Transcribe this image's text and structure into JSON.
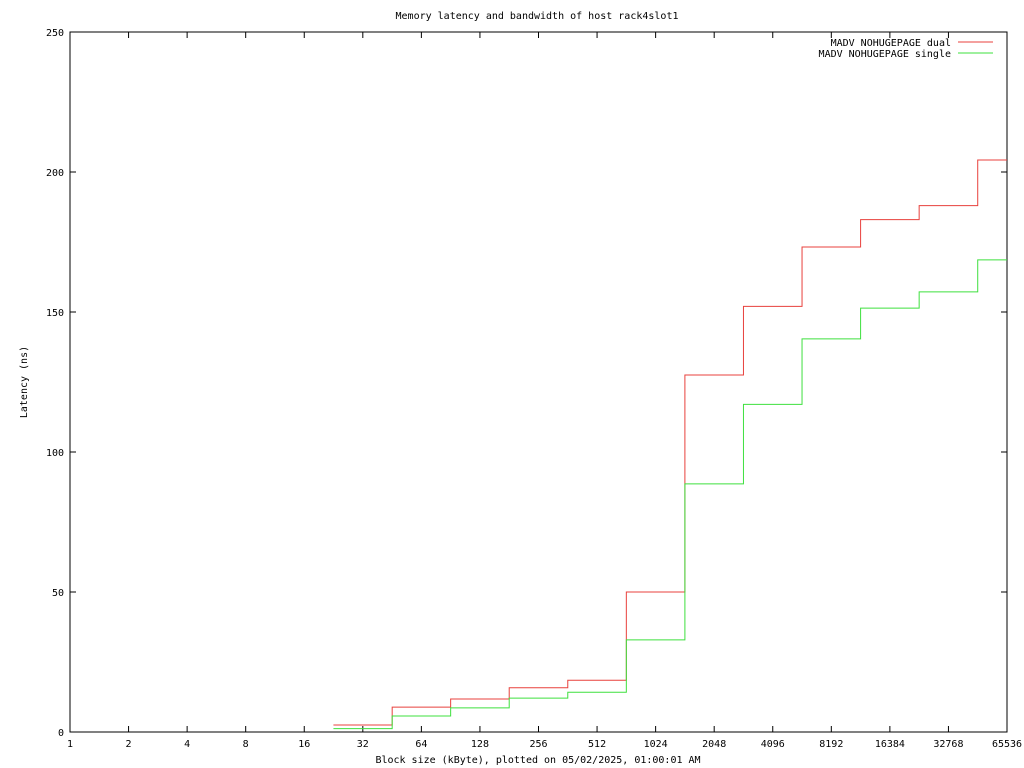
{
  "chart_data": {
    "type": "line",
    "step": true,
    "title": "Memory latency and bandwidth of host rack4slot1",
    "xlabel": "Block size (kByte), plotted on 05/02/2025, 01:00:01 AM",
    "ylabel": "Latency (ns)",
    "xscale": "log2",
    "xlim": [
      1,
      65536
    ],
    "ylim": [
      0,
      250
    ],
    "x_ticks": [
      1,
      2,
      4,
      8,
      16,
      32,
      64,
      128,
      256,
      512,
      1024,
      2048,
      4096,
      8192,
      16384,
      32768,
      65536
    ],
    "x_tick_labels": [
      "1",
      "2",
      "4",
      "8",
      "16",
      "32",
      "64",
      "128",
      "256",
      "512",
      "1024",
      "2048",
      "4096",
      "8192",
      "16384",
      "32768",
      "65536"
    ],
    "y_ticks": [
      0,
      50,
      100,
      150,
      200,
      250
    ],
    "y_tick_labels": [
      "0",
      "50",
      "100",
      "150",
      "200",
      "250"
    ],
    "grid": false,
    "legend_position": "top-right",
    "x": [
      22.6,
      45.3,
      90.5,
      181,
      362,
      724,
      1448,
      2896,
      5793,
      11585,
      23170,
      46341,
      65536
    ],
    "series": [
      {
        "name": "MADV NOHUGEPAGE dual",
        "color": "#e8403c",
        "values": [
          2.5,
          8.9,
          11.8,
          15.8,
          18.5,
          50.0,
          127.5,
          152.0,
          173.2,
          183.0,
          188.0,
          204.3,
          204.3
        ]
      },
      {
        "name": "MADV NOHUGEPAGE single",
        "color": "#3ee03e",
        "values": [
          1.2,
          5.7,
          8.6,
          12.1,
          14.2,
          32.9,
          88.6,
          117.0,
          140.4,
          151.4,
          157.2,
          168.6,
          168.6
        ]
      }
    ]
  }
}
